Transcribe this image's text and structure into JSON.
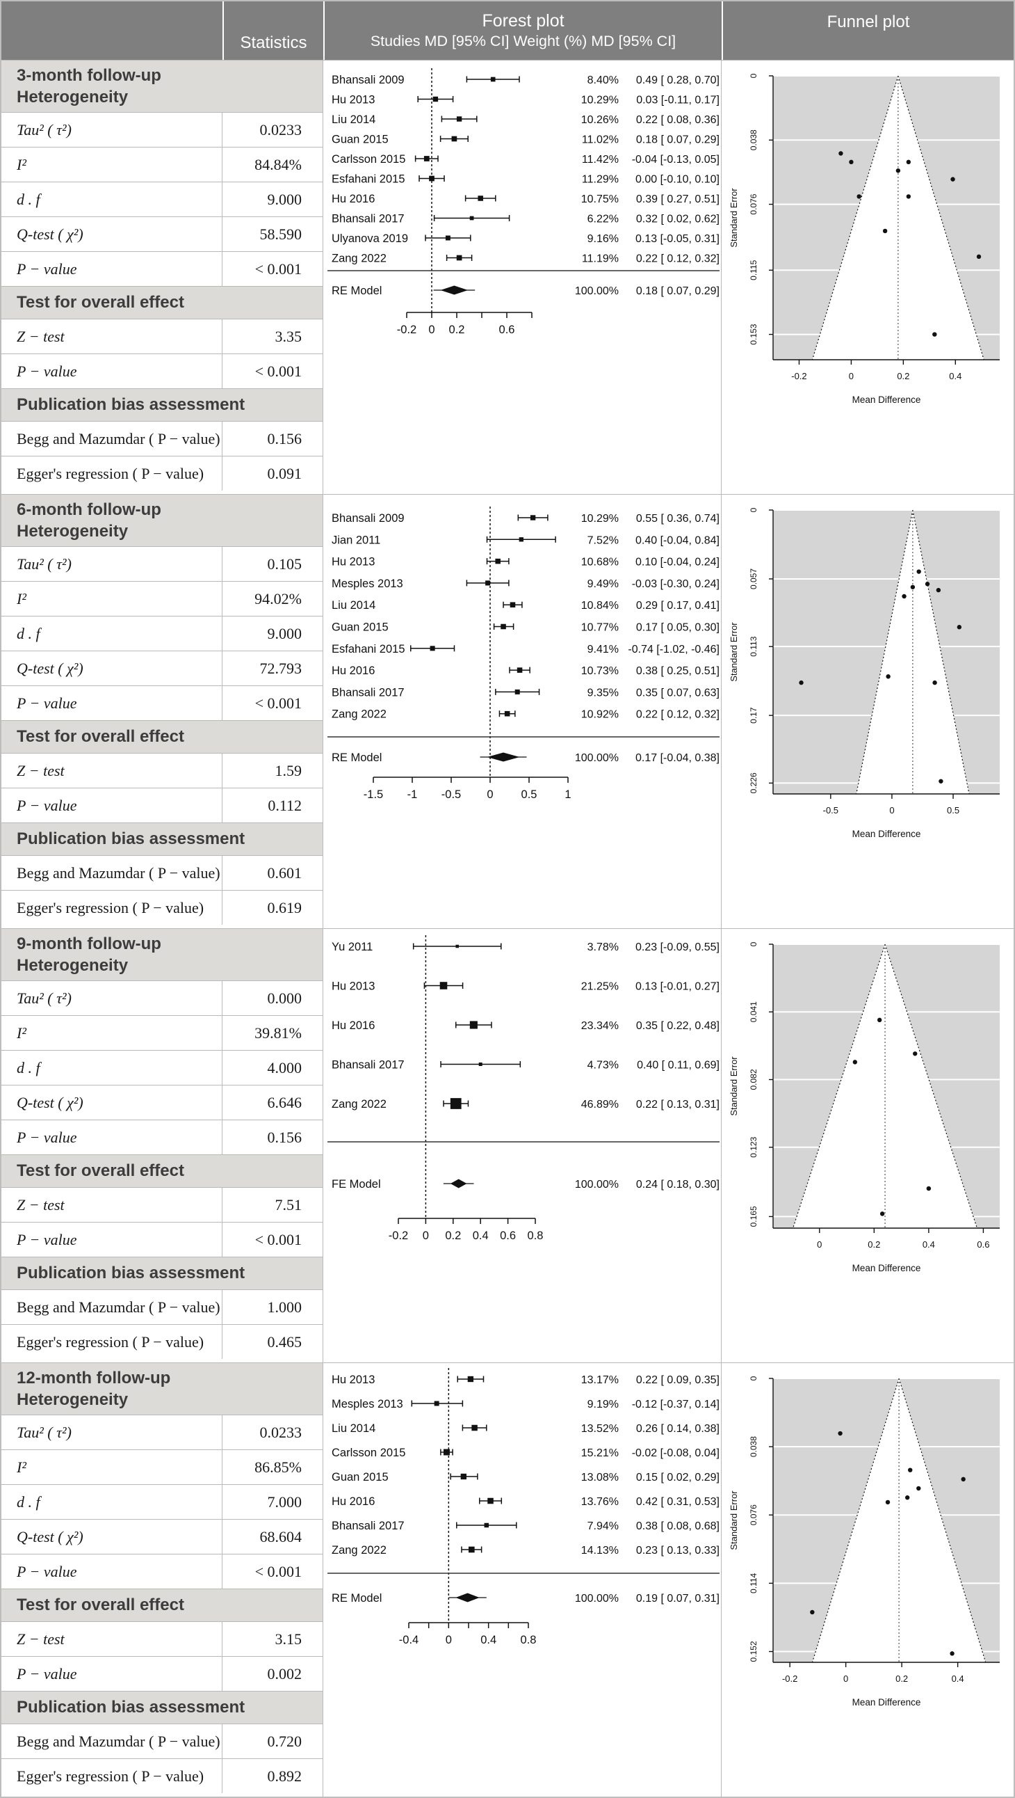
{
  "header": {
    "statistics": "Statistics",
    "forest_title": "Forest plot",
    "forest_subtitle": "Studies MD [95% CI] Weight (%) MD [95% CI]",
    "funnel_title": "Funnel plot"
  },
  "row_labels": {
    "heterogeneity": "Heterogeneity",
    "tau2": "Tau² ( τ²)",
    "i2": "I²",
    "df": "d . f",
    "qtest": "Q-test ( χ²)",
    "pvalue": "P − value",
    "overall": "Test for overall effect",
    "ztest": "Z − test",
    "pubbias": "Publication bias assessment",
    "begg": "Begg and Mazumdar ( P − value)",
    "egger": "Egger's regression ( P − value)"
  },
  "chart_data": [
    {
      "title": "3-month follow-up",
      "stats": {
        "tau2": "0.0233",
        "i2": "84.84%",
        "df": "9.000",
        "q": "58.590",
        "q_p": "< 0.001",
        "z": "3.35",
        "z_p": "< 0.001",
        "begg": "0.156",
        "egger": "0.091"
      },
      "forest": {
        "type": "forest",
        "xrange": [
          -0.2,
          0.8
        ],
        "xticks": [
          {
            "v": -0.2,
            "t": "-0.2"
          },
          {
            "v": 0,
            "t": "0"
          },
          {
            "v": 0.2,
            "t": "0.2"
          },
          {
            "v": 0.4,
            "t": ""
          },
          {
            "v": 0.6,
            "t": "0.6"
          },
          {
            "v": 0.8,
            "t": ""
          }
        ],
        "studies": [
          {
            "label": "Bhansali 2009",
            "weight": "8.40%",
            "md": 0.49,
            "lo": 0.28,
            "hi": 0.7,
            "se": 0.107,
            "ci": "0.49 [ 0.28, 0.70]"
          },
          {
            "label": "Hu 2013",
            "weight": "10.29%",
            "md": 0.03,
            "lo": -0.11,
            "hi": 0.17,
            "se": 0.0714,
            "ci": "0.03 [-0.11, 0.17]"
          },
          {
            "label": "Liu 2014",
            "weight": "10.26%",
            "md": 0.22,
            "lo": 0.08,
            "hi": 0.36,
            "se": 0.0714,
            "ci": "0.22 [ 0.08, 0.36]"
          },
          {
            "label": "Guan 2015",
            "weight": "11.02%",
            "md": 0.18,
            "lo": 0.07,
            "hi": 0.29,
            "se": 0.0561,
            "ci": "0.18 [ 0.07, 0.29]"
          },
          {
            "label": "Carlsson 2015",
            "weight": "11.42%",
            "md": -0.04,
            "lo": -0.13,
            "hi": 0.05,
            "se": 0.0459,
            "ci": "-0.04 [-0.13, 0.05]"
          },
          {
            "label": "Esfahani 2015",
            "weight": "11.29%",
            "md": 0.0,
            "lo": -0.1,
            "hi": 0.1,
            "se": 0.051,
            "ci": "0.00 [-0.10, 0.10]"
          },
          {
            "label": "Hu 2016",
            "weight": "10.75%",
            "md": 0.39,
            "lo": 0.27,
            "hi": 0.51,
            "se": 0.0612,
            "ci": "0.39 [ 0.27, 0.51]"
          },
          {
            "label": "Bhansali 2017",
            "weight": "6.22%",
            "md": 0.32,
            "lo": 0.02,
            "hi": 0.62,
            "se": 0.153,
            "ci": "0.32 [ 0.02, 0.62]"
          },
          {
            "label": "Ulyanova 2019",
            "weight": "9.16%",
            "md": 0.13,
            "lo": -0.05,
            "hi": 0.31,
            "se": 0.0918,
            "ci": "0.13 [-0.05, 0.31]"
          },
          {
            "label": "Zang 2022",
            "weight": "11.19%",
            "md": 0.22,
            "lo": 0.12,
            "hi": 0.32,
            "se": 0.051,
            "ci": "0.22 [ 0.12, 0.32]"
          }
        ],
        "model": {
          "label": "RE Model",
          "weight": "100.00%",
          "md": 0.18,
          "lo": 0.07,
          "hi": 0.29,
          "ci": "0.18 [ 0.07, 0.29]"
        }
      },
      "funnel": {
        "type": "funnel-scatter",
        "ylabel": "Standard Error",
        "xlabel": "Mean Difference",
        "center": 0.18,
        "se_max": 0.168,
        "se_ticks": [
          {
            "v": 0,
            "t": "0"
          },
          {
            "v": 0.038,
            "t": "0.038"
          },
          {
            "v": 0.076,
            "t": "0.076"
          },
          {
            "v": 0.115,
            "t": "0.115"
          },
          {
            "v": 0.153,
            "t": "0.153"
          }
        ],
        "xrange": [
          -0.3,
          0.57
        ],
        "xticks": [
          {
            "v": -0.2,
            "t": "-0.2"
          },
          {
            "v": 0,
            "t": "0"
          },
          {
            "v": 0.2,
            "t": "0.2"
          },
          {
            "v": 0.4,
            "t": "0.4"
          }
        ]
      }
    },
    {
      "title": "6-month follow-up",
      "stats": {
        "tau2": "0.105",
        "i2": "94.02%",
        "df": "9.000",
        "q": "72.793",
        "q_p": "< 0.001",
        "z": "1.59",
        "z_p": "0.112",
        "begg": "0.601",
        "egger": "0.619"
      },
      "forest": {
        "type": "forest",
        "xrange": [
          -1.5,
          1
        ],
        "xticks": [
          {
            "v": -1.5,
            "t": "-1.5"
          },
          {
            "v": -1,
            "t": "-1"
          },
          {
            "v": -0.5,
            "t": "-0.5"
          },
          {
            "v": 0,
            "t": "0"
          },
          {
            "v": 0.5,
            "t": "0.5"
          },
          {
            "v": 1,
            "t": "1"
          }
        ],
        "studies": [
          {
            "label": "Bhansali 2009",
            "weight": "10.29%",
            "md": 0.55,
            "lo": 0.36,
            "hi": 0.74,
            "se": 0.0969,
            "ci": "0.55 [ 0.36, 0.74]"
          },
          {
            "label": "Jian 2011",
            "weight": "7.52%",
            "md": 0.4,
            "lo": -0.04,
            "hi": 0.84,
            "se": 0.2245,
            "ci": "0.40 [-0.04, 0.84]"
          },
          {
            "label": "Hu 2013",
            "weight": "10.68%",
            "md": 0.1,
            "lo": -0.04,
            "hi": 0.24,
            "se": 0.0714,
            "ci": "0.10 [-0.04, 0.24]"
          },
          {
            "label": "Mesples 2013",
            "weight": "9.49%",
            "md": -0.03,
            "lo": -0.3,
            "hi": 0.24,
            "se": 0.1378,
            "ci": "-0.03 [-0.30, 0.24]"
          },
          {
            "label": "Liu 2014",
            "weight": "10.84%",
            "md": 0.29,
            "lo": 0.17,
            "hi": 0.41,
            "se": 0.0612,
            "ci": "0.29 [ 0.17, 0.41]"
          },
          {
            "label": "Guan 2015",
            "weight": "10.77%",
            "md": 0.17,
            "lo": 0.05,
            "hi": 0.3,
            "se": 0.0638,
            "ci": "0.17 [ 0.05, 0.30]"
          },
          {
            "label": "Esfahani 2015",
            "weight": "9.41%",
            "md": -0.74,
            "lo": -1.02,
            "hi": -0.46,
            "se": 0.1429,
            "ci": "-0.74 [-1.02, -0.46]"
          },
          {
            "label": "Hu 2016",
            "weight": "10.73%",
            "md": 0.38,
            "lo": 0.25,
            "hi": 0.51,
            "se": 0.0663,
            "ci": "0.38 [ 0.25, 0.51]"
          },
          {
            "label": "Bhansali 2017",
            "weight": "9.35%",
            "md": 0.35,
            "lo": 0.07,
            "hi": 0.63,
            "se": 0.1429,
            "ci": "0.35 [ 0.07, 0.63]"
          },
          {
            "label": "Zang 2022",
            "weight": "10.92%",
            "md": 0.22,
            "lo": 0.12,
            "hi": 0.32,
            "se": 0.051,
            "ci": "0.22 [ 0.12, 0.32]"
          }
        ],
        "model": {
          "label": "RE Model",
          "weight": "100.00%",
          "md": 0.17,
          "lo": -0.04,
          "hi": 0.38,
          "ci": "0.17 [-0.04, 0.38]"
        }
      },
      "funnel": {
        "type": "funnel-scatter",
        "ylabel": "Standard Error",
        "xlabel": "Mean Difference",
        "center": 0.17,
        "se_max": 0.235,
        "se_ticks": [
          {
            "v": 0,
            "t": "0"
          },
          {
            "v": 0.057,
            "t": "0.057"
          },
          {
            "v": 0.113,
            "t": "0.113"
          },
          {
            "v": 0.17,
            "t": "0.17"
          },
          {
            "v": 0.226,
            "t": "0.226"
          }
        ],
        "xrange": [
          -0.97,
          0.88
        ],
        "xticks": [
          {
            "v": -0.5,
            "t": "-0.5"
          },
          {
            "v": 0,
            "t": "0"
          },
          {
            "v": 0.5,
            "t": "0.5"
          }
        ]
      }
    },
    {
      "title": "9-month follow-up",
      "stats": {
        "tau2": "0.000",
        "i2": "39.81%",
        "df": "4.000",
        "q": "6.646",
        "q_p": "0.156",
        "z": "7.51",
        "z_p": "< 0.001",
        "begg": "1.000",
        "egger": "0.465"
      },
      "forest": {
        "type": "forest",
        "xrange": [
          -0.2,
          0.8
        ],
        "xticks": [
          {
            "v": -0.2,
            "t": "-0.2"
          },
          {
            "v": 0,
            "t": "0"
          },
          {
            "v": 0.2,
            "t": "0.2"
          },
          {
            "v": 0.4,
            "t": "0.4"
          },
          {
            "v": 0.6,
            "t": "0.6"
          },
          {
            "v": 0.8,
            "t": "0.8"
          }
        ],
        "studies": [
          {
            "label": "Yu 2011",
            "weight": "3.78%",
            "md": 0.23,
            "lo": -0.09,
            "hi": 0.55,
            "se": 0.1633,
            "ci": "0.23 [-0.09, 0.55]"
          },
          {
            "label": "Hu 2013",
            "weight": "21.25%",
            "md": 0.13,
            "lo": -0.01,
            "hi": 0.27,
            "se": 0.0714,
            "ci": "0.13 [-0.01, 0.27]"
          },
          {
            "label": "Hu 2016",
            "weight": "23.34%",
            "md": 0.35,
            "lo": 0.22,
            "hi": 0.48,
            "se": 0.0663,
            "ci": "0.35 [ 0.22, 0.48]"
          },
          {
            "label": "Bhansali 2017",
            "weight": "4.73%",
            "md": 0.4,
            "lo": 0.11,
            "hi": 0.69,
            "se": 0.148,
            "ci": "0.40 [ 0.11, 0.69]"
          },
          {
            "label": "Zang 2022",
            "weight": "46.89%",
            "md": 0.22,
            "lo": 0.13,
            "hi": 0.31,
            "se": 0.0459,
            "ci": "0.22 [ 0.13, 0.31]"
          }
        ],
        "model": {
          "label": "FE Model",
          "weight": "100.00%",
          "md": 0.24,
          "lo": 0.18,
          "hi": 0.3,
          "ci": "0.24 [ 0.18, 0.30]"
        }
      },
      "funnel": {
        "type": "funnel-scatter",
        "ylabel": "Standard Error",
        "xlabel": "Mean Difference",
        "center": 0.24,
        "se_max": 0.172,
        "se_ticks": [
          {
            "v": 0,
            "t": "0"
          },
          {
            "v": 0.041,
            "t": "0.041"
          },
          {
            "v": 0.082,
            "t": "0.082"
          },
          {
            "v": 0.123,
            "t": "0.123"
          },
          {
            "v": 0.165,
            "t": "0.165"
          }
        ],
        "xrange": [
          -0.17,
          0.66
        ],
        "xticks": [
          {
            "v": 0,
            "t": "0"
          },
          {
            "v": 0.2,
            "t": "0.2"
          },
          {
            "v": 0.4,
            "t": "0.4"
          },
          {
            "v": 0.6,
            "t": "0.6"
          }
        ]
      }
    },
    {
      "title": "12-month follow-up",
      "stats": {
        "tau2": "0.0233",
        "i2": "86.85%",
        "df": "7.000",
        "q": "68.604",
        "q_p": "< 0.001",
        "z": "3.15",
        "z_p": "0.002",
        "begg": "0.720",
        "egger": "0.892"
      },
      "forest": {
        "type": "forest",
        "xrange": [
          -0.4,
          0.8
        ],
        "xticks": [
          {
            "v": -0.4,
            "t": "-0.4"
          },
          {
            "v": -0.2,
            "t": ""
          },
          {
            "v": 0,
            "t": "0"
          },
          {
            "v": 0.2,
            "t": ""
          },
          {
            "v": 0.4,
            "t": "0.4"
          },
          {
            "v": 0.6,
            "t": ""
          },
          {
            "v": 0.8,
            "t": "0.8"
          }
        ],
        "studies": [
          {
            "label": "Hu 2013",
            "weight": "13.17%",
            "md": 0.22,
            "lo": 0.09,
            "hi": 0.35,
            "se": 0.0663,
            "ci": "0.22 [ 0.09, 0.35]"
          },
          {
            "label": "Mesples 2013",
            "weight": "9.19%",
            "md": -0.12,
            "lo": -0.37,
            "hi": 0.14,
            "se": 0.1301,
            "ci": "-0.12 [-0.37, 0.14]"
          },
          {
            "label": "Liu 2014",
            "weight": "13.52%",
            "md": 0.26,
            "lo": 0.14,
            "hi": 0.38,
            "se": 0.0612,
            "ci": "0.26 [ 0.14, 0.38]"
          },
          {
            "label": "Carlsson 2015",
            "weight": "15.21%",
            "md": -0.02,
            "lo": -0.08,
            "hi": 0.04,
            "se": 0.0306,
            "ci": "-0.02 [-0.08, 0.04]"
          },
          {
            "label": "Guan 2015",
            "weight": "13.08%",
            "md": 0.15,
            "lo": 0.02,
            "hi": 0.29,
            "se": 0.0689,
            "ci": "0.15 [ 0.02, 0.29]"
          },
          {
            "label": "Hu 2016",
            "weight": "13.76%",
            "md": 0.42,
            "lo": 0.31,
            "hi": 0.53,
            "se": 0.0561,
            "ci": "0.42 [ 0.31, 0.53]"
          },
          {
            "label": "Bhansali 2017",
            "weight": "7.94%",
            "md": 0.38,
            "lo": 0.08,
            "hi": 0.68,
            "se": 0.1531,
            "ci": "0.38 [ 0.08, 0.68]"
          },
          {
            "label": "Zang 2022",
            "weight": "14.13%",
            "md": 0.23,
            "lo": 0.13,
            "hi": 0.33,
            "se": 0.051,
            "ci": "0.23 [ 0.13, 0.33]"
          }
        ],
        "model": {
          "label": "RE Model",
          "weight": "100.00%",
          "md": 0.19,
          "lo": 0.07,
          "hi": 0.31,
          "ci": "0.19 [ 0.07, 0.31]"
        }
      },
      "funnel": {
        "type": "funnel-scatter",
        "ylabel": "Standard Error",
        "xlabel": "Mean Difference",
        "center": 0.19,
        "se_max": 0.158,
        "se_ticks": [
          {
            "v": 0,
            "t": "0"
          },
          {
            "v": 0.038,
            "t": "0.038"
          },
          {
            "v": 0.076,
            "t": "0.076"
          },
          {
            "v": 0.114,
            "t": "0.114"
          },
          {
            "v": 0.152,
            "t": "0.152"
          }
        ],
        "xrange": [
          -0.26,
          0.55
        ],
        "xticks": [
          {
            "v": -0.2,
            "t": "-0.2"
          },
          {
            "v": 0,
            "t": "0"
          },
          {
            "v": 0.2,
            "t": "0.2"
          },
          {
            "v": 0.4,
            "t": "0.4"
          }
        ]
      }
    }
  ],
  "colors": {
    "header_bg": "#7f7f7f",
    "section_header_bg": "#dcdbd8",
    "border": "#b9b9b9",
    "funnel_bg": "#d5d5d5",
    "ink": "#111111"
  }
}
